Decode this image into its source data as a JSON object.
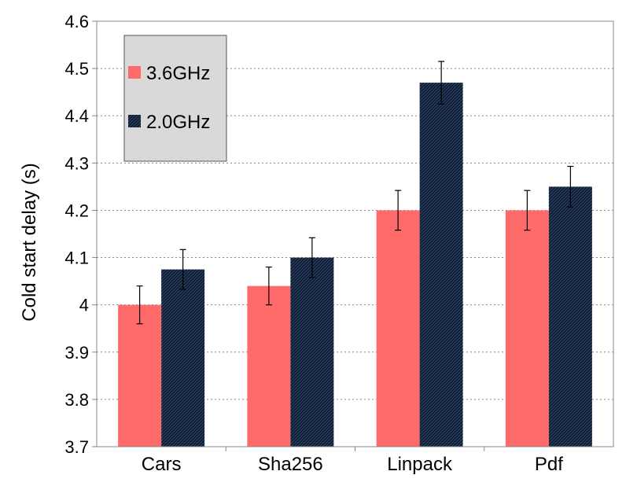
{
  "chart_data": {
    "type": "bar",
    "title": "",
    "xlabel": "",
    "ylabel": "Cold start delay (s)",
    "ylim": [
      3.7,
      4.6
    ],
    "yticks": [
      3.7,
      3.8,
      3.9,
      4,
      4.1,
      4.2,
      4.3,
      4.4,
      4.5,
      4.6
    ],
    "ytick_labels": [
      "3.7",
      "3.8",
      "3.9",
      "4",
      "4.1",
      "4.2",
      "4.3",
      "4.4",
      "4.5",
      "4.6"
    ],
    "grid": "horizontal dotted",
    "legend_position": "top-left",
    "categories": [
      "Cars",
      "Sha256",
      "Linpack",
      "Pdf"
    ],
    "series": [
      {
        "name": "3.6GHz",
        "color": "#ff6b6b",
        "pattern": "solid",
        "values": [
          4.0,
          4.04,
          4.2,
          4.2
        ],
        "errors": [
          0.04,
          0.04,
          0.042,
          0.042
        ]
      },
      {
        "name": "2.0GHz",
        "color": "#1f2f4a",
        "pattern": "hatched",
        "values": [
          4.075,
          4.1,
          4.47,
          4.25
        ],
        "errors": [
          0.042,
          0.042,
          0.045,
          0.043
        ]
      }
    ]
  }
}
